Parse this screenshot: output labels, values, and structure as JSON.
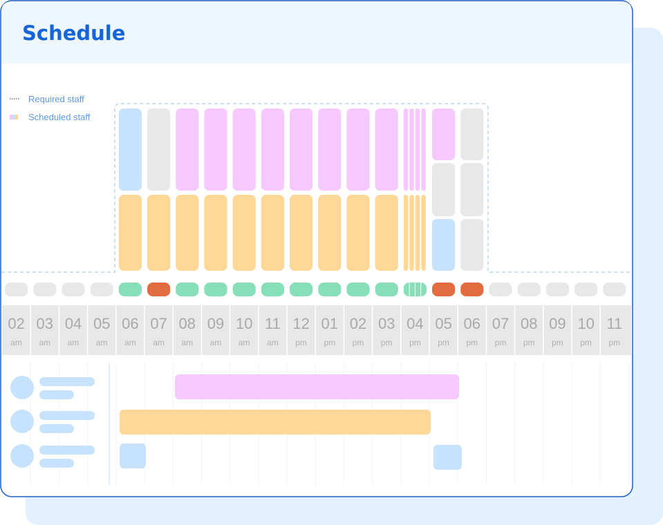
{
  "header": {
    "title": "Schedule"
  },
  "legend": {
    "required": "Required staff",
    "scheduled": "Scheduled staff"
  },
  "timeline": {
    "hours": [
      {
        "hour": "02",
        "period": "am"
      },
      {
        "hour": "03",
        "period": "am"
      },
      {
        "hour": "04",
        "period": "am"
      },
      {
        "hour": "05",
        "period": "am"
      },
      {
        "hour": "06",
        "period": "am"
      },
      {
        "hour": "07",
        "period": "am"
      },
      {
        "hour": "08",
        "period": "am"
      },
      {
        "hour": "09",
        "period": "am"
      },
      {
        "hour": "10",
        "period": "am"
      },
      {
        "hour": "11",
        "period": "am"
      },
      {
        "hour": "12",
        "period": "pm"
      },
      {
        "hour": "01",
        "period": "pm"
      },
      {
        "hour": "02",
        "period": "pm"
      },
      {
        "hour": "03",
        "period": "pm"
      },
      {
        "hour": "04",
        "period": "pm"
      },
      {
        "hour": "05",
        "period": "pm"
      },
      {
        "hour": "06",
        "period": "pm"
      },
      {
        "hour": "07",
        "period": "pm"
      },
      {
        "hour": "08",
        "period": "pm"
      },
      {
        "hour": "09",
        "period": "pm"
      },
      {
        "hour": "10",
        "period": "pm"
      },
      {
        "hour": "11",
        "period": "pm"
      }
    ]
  }
}
